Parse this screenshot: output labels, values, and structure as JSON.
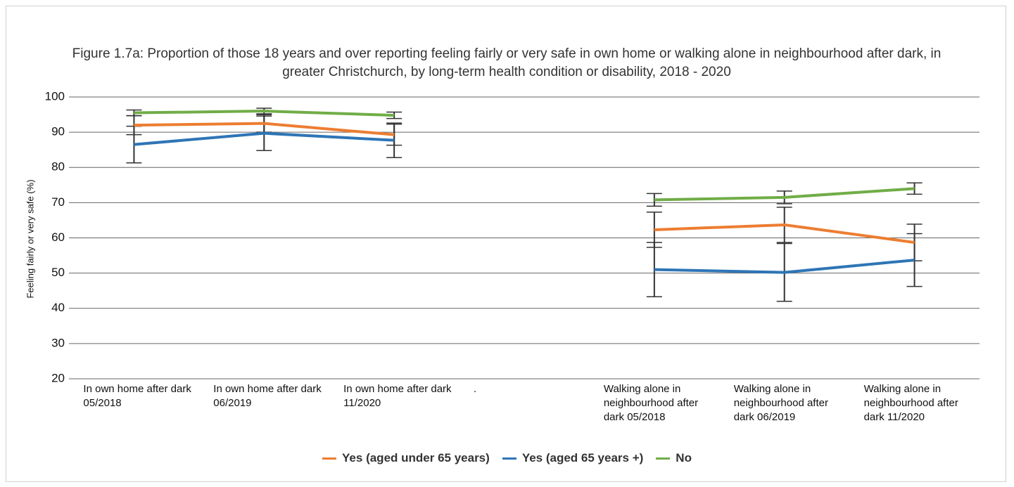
{
  "chart_data": {
    "type": "line",
    "title": "Figure 1.7a: Proportion of those 18 years and over reporting feeling fairly or very safe in own home or walking alone in neighbourhood after dark, in greater Christchurch, by long-term health condition or disability, 2018 - 2020",
    "y_label": "Feeling fairly or very safe (%)",
    "categories": [
      "In own home after dark 05/2018",
      "In own home after dark 06/2019",
      "In own home after dark 11/2020",
      ".",
      "Walking alone in neighbourhood after dark 05/2018",
      "Walking alone in neighbourhood after dark 06/2019",
      "Walking alone in neighbourhood after dark 11/2020"
    ],
    "series": [
      {
        "name": "Yes (aged under 65 years)",
        "color": "#ed7d31",
        "values": [
          92,
          92.5,
          89.3,
          null,
          62.3,
          63.7,
          58.7
        ],
        "errors": [
          2.7,
          2.5,
          3,
          null,
          5,
          5,
          5.2
        ]
      },
      {
        "name": "Yes (aged 65 years +)",
        "color": "#2e75b6",
        "values": [
          86.5,
          89.7,
          87.7,
          null,
          51,
          50.2,
          53.7
        ],
        "errors": [
          5.2,
          4.9,
          4.9,
          null,
          7.7,
          8.2,
          7.5
        ]
      },
      {
        "name": "No",
        "color": "#70ad47",
        "values": [
          95.5,
          96,
          94.8,
          null,
          70.8,
          71.5,
          74
        ],
        "errors": [
          0.8,
          0.8,
          0.9,
          null,
          1.8,
          1.8,
          1.6
        ]
      }
    ],
    "ylim": [
      20,
      100
    ],
    "yticks": [
      20,
      30,
      40,
      50,
      60,
      70,
      80,
      90,
      100
    ],
    "grid": true,
    "legend": "bottom"
  }
}
